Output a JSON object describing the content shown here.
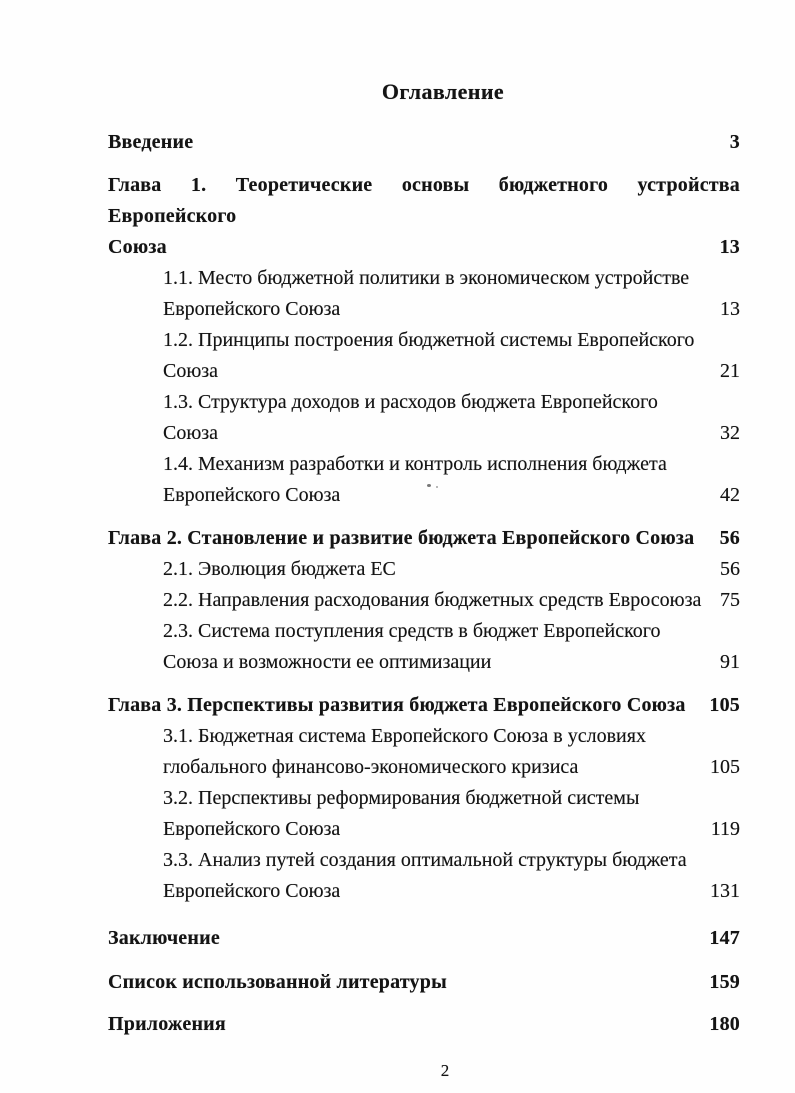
{
  "document": {
    "title": "Оглавление",
    "footer_page_number": "2"
  },
  "toc": {
    "groups": [
      {
        "heading": {
          "lines": [
            {
              "text": "Введение",
              "page": "3"
            }
          ]
        },
        "items": []
      },
      {
        "heading": {
          "lines": [
            {
              "text": "Глава 1. Теоретические основы бюджетного устройства Европейского",
              "justify": true
            },
            {
              "text": "Союза",
              "page": "13"
            }
          ]
        },
        "items": [
          {
            "lines": [
              {
                "text": "1.1. Место бюджетной политики в экономическом устройстве"
              },
              {
                "text": "Европейского Союза",
                "page": "13"
              }
            ]
          },
          {
            "lines": [
              {
                "text": "1.2. Принципы построения бюджетной системы Европейского"
              },
              {
                "text": "Союза",
                "page": "21"
              }
            ]
          },
          {
            "lines": [
              {
                "text": "1.3. Структура доходов и расходов бюджета Европейского"
              },
              {
                "text": "Союза",
                "page": "32"
              }
            ]
          },
          {
            "lines": [
              {
                "text": "1.4. Механизм разработки и контроль исполнения бюджета"
              },
              {
                "text": "Европейского Союза",
                "page": "42"
              }
            ]
          }
        ]
      },
      {
        "heading": {
          "lines": [
            {
              "text": "Глава 2. Становление и развитие бюджета Европейского Союза",
              "page": "56"
            }
          ]
        },
        "items": [
          {
            "lines": [
              {
                "text": "2.1. Эволюция бюджета ЕС",
                "page": "56"
              }
            ]
          },
          {
            "lines": [
              {
                "text": "2.2. Направления расходования бюджетных средств Евросоюза",
                "page": "75"
              }
            ]
          },
          {
            "lines": [
              {
                "text": "2.3. Система поступления средств в бюджет Европейского"
              },
              {
                "text": "Союза и возможности ее оптимизации",
                "page": "91"
              }
            ]
          }
        ]
      },
      {
        "heading": {
          "lines": [
            {
              "text": "Глава 3. Перспективы развития бюджета Европейского Союза",
              "page": "105"
            }
          ]
        },
        "items": [
          {
            "lines": [
              {
                "text": "3.1. Бюджетная система Европейского Союза в условиях"
              },
              {
                "text": "глобального финансово-экономического кризиса",
                "page": "105"
              }
            ]
          },
          {
            "lines": [
              {
                "text": "3.2. Перспективы реформирования бюджетной системы"
              },
              {
                "text": "Европейского Союза",
                "page": "119"
              }
            ]
          },
          {
            "lines": [
              {
                "text": "3.3. Анализ путей создания оптимальной структуры бюджета"
              },
              {
                "text": "Европейского Союза",
                "page": "131"
              }
            ]
          }
        ]
      },
      {
        "heading": {
          "lines": [
            {
              "text": "Заключение",
              "page": "147"
            }
          ]
        },
        "items": []
      },
      {
        "heading": {
          "lines": [
            {
              "text": "Список использованной литературы",
              "page": "159"
            }
          ]
        },
        "items": []
      },
      {
        "heading": {
          "lines": [
            {
              "text": "Приложения",
              "page": "180"
            }
          ]
        },
        "items": []
      }
    ]
  }
}
